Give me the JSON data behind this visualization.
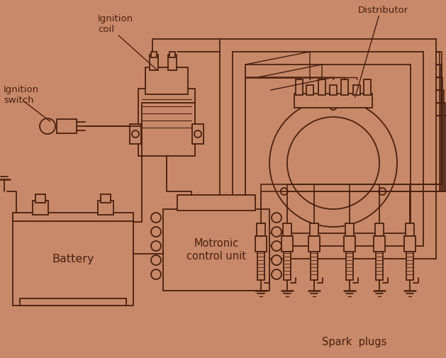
{
  "bg_color": "#c8896a",
  "line_color": "#4a2010",
  "labels": {
    "ignition_switch": "Ignition\nswitch",
    "ignition_coil": "Ignition\ncoil",
    "distributor": "Distributor",
    "battery": "Battery",
    "motronic": "Motronic\ncontrol unit",
    "spark_plugs": "Spark  plugs"
  },
  "label_fontsize": 9.5,
  "wire_lw": 1.3,
  "component_lw": 1.3
}
